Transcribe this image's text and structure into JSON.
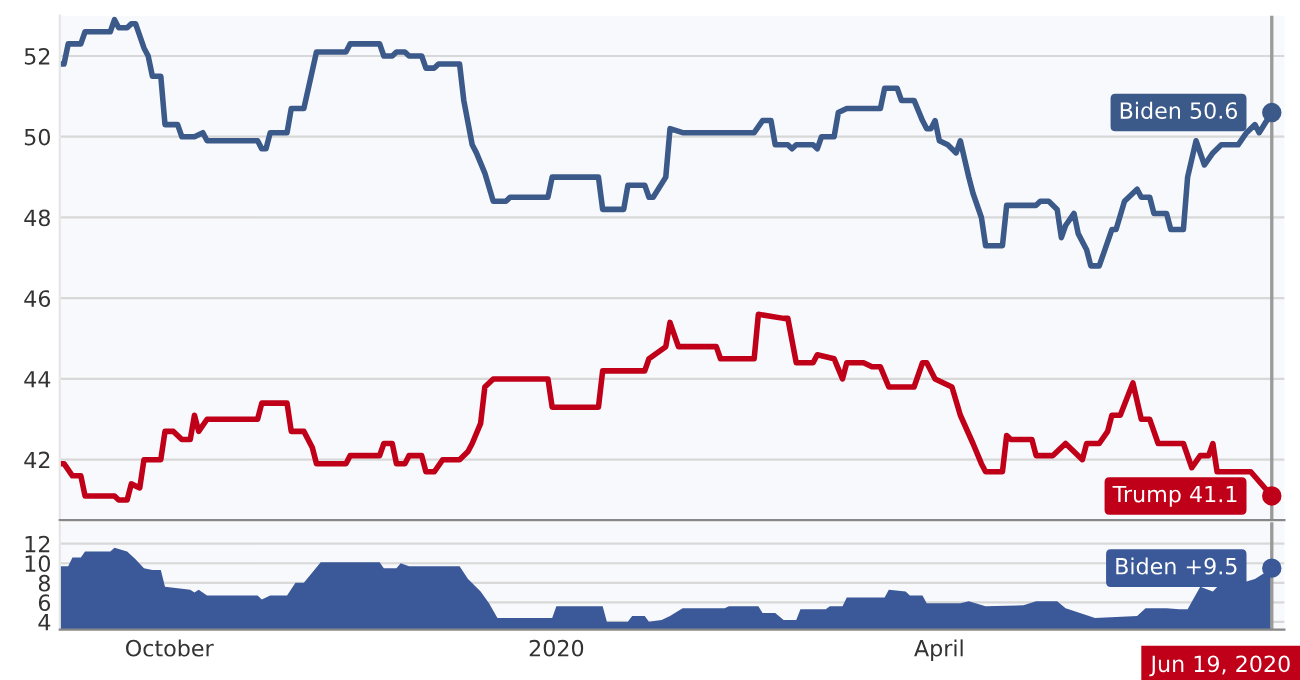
{
  "chart_data": [
    {
      "type": "line",
      "xlim": [
        "2019-09-05",
        "2020-06-22"
      ],
      "ylim": [
        40.5,
        53.0
      ],
      "yticks": [
        42,
        44,
        46,
        48,
        50,
        52
      ],
      "tick_labels": "y",
      "grid": "y",
      "legend": false,
      "series": [
        {
          "color": "#3b5a8a",
          "x": [
            "2019-09-05",
            "2019-09-06",
            "2019-09-07",
            "2019-09-10",
            "2019-09-11",
            "2019-09-17",
            "2019-09-18",
            "2019-09-19",
            "2019-09-21",
            "2019-09-22",
            "2019-09-23",
            "2019-09-25",
            "2019-09-26",
            "2019-09-27",
            "2019-09-29",
            "2019-09-30",
            "2019-10-03",
            "2019-10-04",
            "2019-10-07",
            "2019-10-09",
            "2019-10-10",
            "2019-10-22",
            "2019-10-23",
            "2019-10-24",
            "2019-10-25",
            "2019-10-29",
            "2019-10-30",
            "2019-11-02",
            "2019-11-05",
            "2019-11-12",
            "2019-11-13",
            "2019-11-20",
            "2019-11-21",
            "2019-11-23",
            "2019-11-24",
            "2019-11-26",
            "2019-11-27",
            "2019-11-30",
            "2019-12-01",
            "2019-12-03",
            "2019-12-04",
            "2019-12-09",
            "2019-12-10",
            "2019-12-12",
            "2019-12-13",
            "2019-12-15",
            "2019-12-17",
            "2019-12-20",
            "2019-12-21",
            "2019-12-30",
            "2019-12-31",
            "2020-01-11",
            "2020-01-12",
            "2020-01-17",
            "2020-01-18",
            "2020-01-22",
            "2020-01-23",
            "2020-01-24",
            "2020-01-27",
            "2020-01-28",
            "2020-01-31",
            "2020-02-17",
            "2020-02-19",
            "2020-02-21",
            "2020-02-22",
            "2020-02-25",
            "2020-02-26",
            "2020-02-27",
            "2020-03-02",
            "2020-03-03",
            "2020-03-04",
            "2020-03-07",
            "2020-03-08",
            "2020-03-10",
            "2020-03-18",
            "2020-03-19",
            "2020-03-22",
            "2020-03-23",
            "2020-03-26",
            "2020-03-28",
            "2020-03-29",
            "2020-03-30",
            "2020-03-31",
            "2020-04-01",
            "2020-04-03",
            "2020-04-05",
            "2020-04-06",
            "2020-04-08",
            "2020-04-09",
            "2020-04-11",
            "2020-04-12",
            "2020-04-16",
            "2020-04-17",
            "2020-04-24",
            "2020-04-25",
            "2020-04-27",
            "2020-04-29",
            "2020-04-30",
            "2020-05-01",
            "2020-05-03",
            "2020-05-04",
            "2020-05-06",
            "2020-05-07",
            "2020-05-09",
            "2020-05-10",
            "2020-05-12",
            "2020-05-13",
            "2020-05-15",
            "2020-05-17",
            "2020-05-18",
            "2020-05-19",
            "2020-05-21",
            "2020-05-22",
            "2020-05-25",
            "2020-05-26",
            "2020-05-29",
            "2020-05-30",
            "2020-06-01",
            "2020-06-03",
            "2020-06-05",
            "2020-06-07",
            "2020-06-11",
            "2020-06-13",
            "2020-06-15",
            "2020-06-16",
            "2020-06-19"
          ],
          "values": [
            51.8,
            51.8,
            52.3,
            52.3,
            52.6,
            52.6,
            52.9,
            52.7,
            52.7,
            52.8,
            52.8,
            52.2,
            52.0,
            51.5,
            51.5,
            50.3,
            50.3,
            50.0,
            50.0,
            50.1,
            49.9,
            49.9,
            49.7,
            49.7,
            50.1,
            50.1,
            50.7,
            50.7,
            52.1,
            52.1,
            52.3,
            52.3,
            52.0,
            52.0,
            52.1,
            52.1,
            52.0,
            52.0,
            51.7,
            51.7,
            51.8,
            51.8,
            50.9,
            49.8,
            49.6,
            49.1,
            48.4,
            48.4,
            48.5,
            48.5,
            49.0,
            49.0,
            48.2,
            48.2,
            48.8,
            48.8,
            48.5,
            48.5,
            49.0,
            50.2,
            50.1,
            50.1,
            50.4,
            50.4,
            49.8,
            49.8,
            49.7,
            49.8,
            49.8,
            49.7,
            50.0,
            50.0,
            50.6,
            50.7,
            50.7,
            51.2,
            51.2,
            50.9,
            50.9,
            50.4,
            50.2,
            50.2,
            50.4,
            49.9,
            49.8,
            49.6,
            49.9,
            49.0,
            48.6,
            48.0,
            47.3,
            47.3,
            48.3,
            48.3,
            48.4,
            48.4,
            48.2,
            47.5,
            47.8,
            48.1,
            47.6,
            47.2,
            46.8,
            46.8,
            47.1,
            47.7,
            47.7,
            48.4,
            48.6,
            48.7,
            48.5,
            48.5,
            48.1,
            48.1,
            47.7,
            47.7,
            49.0,
            49.9,
            49.3,
            49.6,
            49.8,
            49.8,
            50.1,
            50.3,
            50.1,
            50.6
          ]
        },
        {
          "color": "#c00018",
          "x": [
            "2019-09-05",
            "2019-09-06",
            "2019-09-08",
            "2019-09-10",
            "2019-09-11",
            "2019-09-18",
            "2019-09-19",
            "2019-09-21",
            "2019-09-22",
            "2019-09-24",
            "2019-09-25",
            "2019-09-29",
            "2019-09-30",
            "2019-10-02",
            "2019-10-04",
            "2019-10-06",
            "2019-10-07",
            "2019-10-08",
            "2019-10-10",
            "2019-10-22",
            "2019-10-23",
            "2019-10-29",
            "2019-10-30",
            "2019-11-02",
            "2019-11-04",
            "2019-11-05",
            "2019-11-12",
            "2019-11-13",
            "2019-11-20",
            "2019-11-21",
            "2019-11-23",
            "2019-11-24",
            "2019-11-26",
            "2019-11-27",
            "2019-11-30",
            "2019-12-01",
            "2019-12-03",
            "2019-12-05",
            "2019-12-09",
            "2019-12-11",
            "2019-12-12",
            "2019-12-14",
            "2019-12-15",
            "2019-12-17",
            "2019-12-30",
            "2019-12-31",
            "2020-01-11",
            "2020-01-12",
            "2020-01-22",
            "2020-01-23",
            "2020-01-27",
            "2020-01-28",
            "2020-01-30",
            "2020-02-08",
            "2020-02-09",
            "2020-02-17",
            "2020-02-18",
            "2020-02-24",
            "2020-02-25",
            "2020-02-27",
            "2020-03-02",
            "2020-03-03",
            "2020-03-07",
            "2020-03-09",
            "2020-03-10",
            "2020-03-14",
            "2020-03-16",
            "2020-03-18",
            "2020-03-20",
            "2020-03-26",
            "2020-03-28",
            "2020-03-29",
            "2020-03-31",
            "2020-04-04",
            "2020-04-06",
            "2020-04-09",
            "2020-04-11",
            "2020-04-12",
            "2020-04-16",
            "2020-04-17",
            "2020-04-18",
            "2020-04-23",
            "2020-04-24",
            "2020-04-28",
            "2020-05-01",
            "2020-05-05",
            "2020-05-06",
            "2020-05-09",
            "2020-05-11",
            "2020-05-12",
            "2020-05-14",
            "2020-05-17",
            "2020-05-19",
            "2020-05-21",
            "2020-05-23",
            "2020-05-29",
            "2020-05-31",
            "2020-06-02",
            "2020-06-04",
            "2020-06-05",
            "2020-06-06",
            "2020-06-14",
            "2020-06-19"
          ],
          "values": [
            41.9,
            41.9,
            41.6,
            41.6,
            41.1,
            41.1,
            41.0,
            41.0,
            41.4,
            41.3,
            42.0,
            42.0,
            42.7,
            42.7,
            42.5,
            42.5,
            43.1,
            42.7,
            43.0,
            43.0,
            43.4,
            43.4,
            42.7,
            42.7,
            42.3,
            41.9,
            41.9,
            42.1,
            42.1,
            42.4,
            42.4,
            41.9,
            41.9,
            42.1,
            42.1,
            41.7,
            41.7,
            42.0,
            42.0,
            42.2,
            42.4,
            42.9,
            43.8,
            44.0,
            44.0,
            43.3,
            43.3,
            44.2,
            44.2,
            44.5,
            44.8,
            45.4,
            44.8,
            44.8,
            44.5,
            44.5,
            45.6,
            45.5,
            45.5,
            44.4,
            44.4,
            44.6,
            44.5,
            44.0,
            44.4,
            44.4,
            44.3,
            44.3,
            43.8,
            43.8,
            44.4,
            44.4,
            44.0,
            43.8,
            43.1,
            42.4,
            41.9,
            41.7,
            41.7,
            42.6,
            42.5,
            42.5,
            42.1,
            42.1,
            42.4,
            42.0,
            42.4,
            42.4,
            42.7,
            43.1,
            43.1,
            43.9,
            43.0,
            43.0,
            42.4,
            42.4,
            41.8,
            42.1,
            42.1,
            42.4,
            41.7,
            41.7,
            41.1
          ]
        }
      ],
      "annotations": [
        {
          "text": "Biden 50.6",
          "x": "2020-06-19",
          "y": 50.6
        },
        {
          "text": "Trump 41.1",
          "x": "2020-06-19",
          "y": 41.1
        }
      ],
      "ref_lines": [
        {
          "axis": "x",
          "value": "2020-06-19",
          "color": "#9a9a9a"
        }
      ]
    },
    {
      "type": "area",
      "xlim": [
        "2019-09-05",
        "2020-06-22"
      ],
      "ylim": [
        3.2,
        14.2
      ],
      "yticks": [
        4,
        6,
        8,
        10,
        12
      ],
      "xticks": [
        {
          "value": "2019-10-01",
          "label": "October"
        },
        {
          "value": "2020-01-01",
          "label": "2020"
        },
        {
          "value": "2020-04-01",
          "label": "April"
        }
      ],
      "grid": "y",
      "legend": false,
      "series": [
        {
          "color": "#3b5998",
          "x": [
            "2019-09-05",
            "2019-09-07",
            "2019-09-08",
            "2019-09-10",
            "2019-09-11",
            "2019-09-17",
            "2019-09-18",
            "2019-09-21",
            "2019-09-23",
            "2019-09-25",
            "2019-09-27",
            "2019-09-29",
            "2019-09-30",
            "2019-10-06",
            "2019-10-07",
            "2019-10-08",
            "2019-10-10",
            "2019-10-22",
            "2019-10-23",
            "2019-10-25",
            "2019-10-29",
            "2019-10-31",
            "2019-11-02",
            "2019-11-06",
            "2019-11-20",
            "2019-11-21",
            "2019-11-24",
            "2019-11-25",
            "2019-11-27",
            "2019-12-09",
            "2019-12-11",
            "2019-12-14",
            "2019-12-16",
            "2019-12-18",
            "2019-12-31",
            "2020-01-01",
            "2020-01-12",
            "2020-01-13",
            "2020-01-18",
            "2020-01-19",
            "2020-01-22",
            "2020-01-23",
            "2020-01-26",
            "2020-01-28",
            "2020-01-31",
            "2020-02-10",
            "2020-02-11",
            "2020-02-18",
            "2020-02-19",
            "2020-02-22",
            "2020-02-24",
            "2020-02-27",
            "2020-02-28",
            "2020-03-05",
            "2020-03-06",
            "2020-03-09",
            "2020-03-10",
            "2020-03-19",
            "2020-03-20",
            "2020-03-24",
            "2020-03-25",
            "2020-03-28",
            "2020-03-29",
            "2020-04-06",
            "2020-04-08",
            "2020-04-12",
            "2020-04-21",
            "2020-04-24",
            "2020-04-29",
            "2020-05-01",
            "2020-05-03",
            "2020-05-08",
            "2020-05-18",
            "2020-05-20",
            "2020-05-25",
            "2020-05-28",
            "2020-05-30",
            "2020-06-02",
            "2020-06-05",
            "2020-06-07",
            "2020-06-12",
            "2020-06-15",
            "2020-06-19"
          ],
          "values": [
            9.7,
            9.7,
            10.6,
            10.6,
            11.2,
            11.2,
            11.6,
            11.2,
            10.4,
            9.5,
            9.3,
            9.3,
            7.6,
            7.3,
            7.0,
            7.3,
            6.7,
            6.7,
            6.3,
            6.7,
            6.7,
            8.0,
            8.0,
            10.1,
            10.1,
            9.5,
            9.5,
            10.0,
            9.7,
            9.7,
            8.4,
            7.1,
            5.9,
            4.4,
            4.4,
            5.6,
            5.6,
            4.0,
            4.0,
            4.6,
            4.6,
            4.0,
            4.2,
            4.6,
            5.4,
            5.4,
            5.6,
            5.6,
            4.9,
            4.9,
            4.2,
            4.2,
            5.3,
            5.3,
            5.6,
            5.6,
            6.5,
            6.5,
            7.3,
            7.1,
            6.7,
            6.7,
            5.9,
            5.9,
            6.1,
            5.6,
            5.7,
            6.1,
            6.1,
            5.4,
            5.1,
            4.4,
            4.6,
            5.4,
            5.4,
            5.3,
            5.3,
            7.6,
            7.1,
            8.0,
            8.0,
            8.4,
            9.5
          ]
        }
      ],
      "annotations": [
        {
          "text": "Biden +9.5",
          "x": "2020-06-19",
          "y": 9.5
        }
      ],
      "ref_lines": [
        {
          "axis": "x",
          "value": "2020-06-19",
          "label": "Jun 19, 2020",
          "color": "#9a9a9a"
        }
      ]
    }
  ]
}
